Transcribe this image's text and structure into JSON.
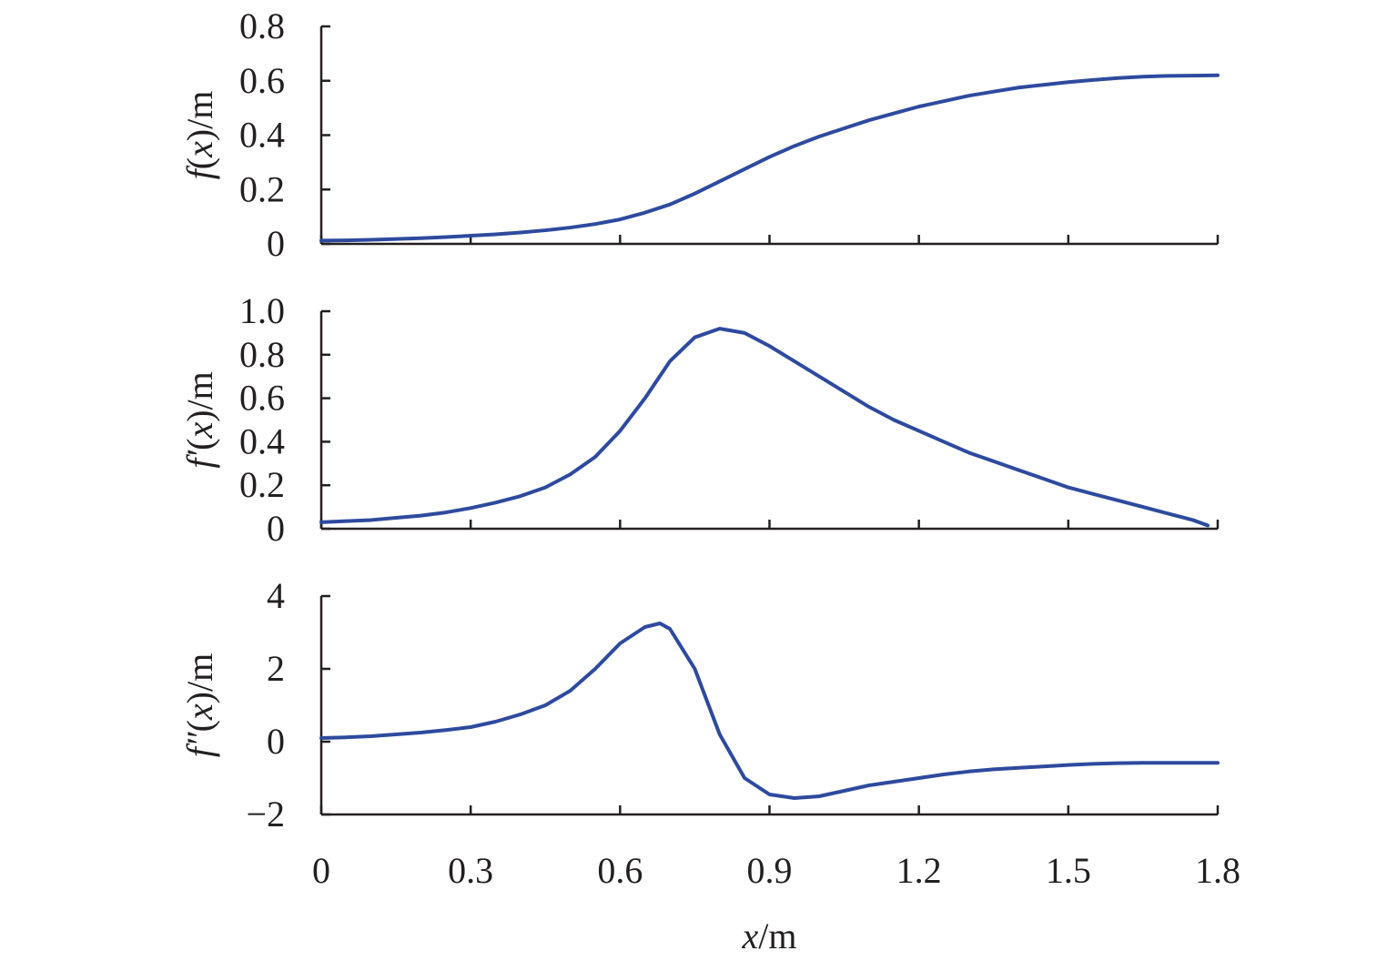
{
  "colors": {
    "line": "#2e4a9e",
    "axis": "#231f20"
  },
  "x_axis": {
    "label_var": "x",
    "label_unit": "/m",
    "ticks": [
      "0",
      "0.3",
      "0.6",
      "0.9",
      "1.2",
      "1.5",
      "1.8"
    ]
  },
  "chart_data": [
    {
      "type": "line",
      "ylabel_func": "f",
      "ylabel_prime": "",
      "ylabel_open": "(",
      "ylabel_var": "x",
      "ylabel_close": ")/m",
      "xlim": [
        0,
        1.8
      ],
      "ylim": [
        0,
        0.8
      ],
      "yticks": [
        0,
        0.2,
        0.4,
        0.6,
        0.8
      ],
      "ytick_labels": [
        "0",
        "0.2",
        "0.4",
        "0.6",
        "0.8"
      ],
      "x": [
        0,
        0.05,
        0.1,
        0.15,
        0.2,
        0.25,
        0.3,
        0.35,
        0.4,
        0.45,
        0.5,
        0.55,
        0.6,
        0.65,
        0.7,
        0.75,
        0.8,
        0.85,
        0.9,
        0.95,
        1.0,
        1.05,
        1.1,
        1.15,
        1.2,
        1.25,
        1.3,
        1.35,
        1.4,
        1.45,
        1.5,
        1.55,
        1.6,
        1.65,
        1.7,
        1.75,
        1.8
      ],
      "y": [
        0.012,
        0.013,
        0.015,
        0.018,
        0.021,
        0.025,
        0.03,
        0.035,
        0.042,
        0.05,
        0.06,
        0.073,
        0.09,
        0.115,
        0.145,
        0.185,
        0.23,
        0.275,
        0.32,
        0.36,
        0.395,
        0.425,
        0.455,
        0.48,
        0.505,
        0.525,
        0.545,
        0.56,
        0.575,
        0.585,
        0.595,
        0.603,
        0.61,
        0.615,
        0.618,
        0.619,
        0.62
      ]
    },
    {
      "type": "line",
      "ylabel_func": "f",
      "ylabel_prime": "′",
      "ylabel_open": "(",
      "ylabel_var": "x",
      "ylabel_close": ")/m",
      "xlim": [
        0,
        1.8
      ],
      "ylim": [
        0,
        1.0
      ],
      "yticks": [
        0,
        0.2,
        0.4,
        0.6,
        0.8,
        1.0
      ],
      "ytick_labels": [
        "0",
        "0.2",
        "0.4",
        "0.6",
        "0.8",
        "1.0"
      ],
      "x": [
        0,
        0.05,
        0.1,
        0.15,
        0.2,
        0.25,
        0.3,
        0.35,
        0.4,
        0.45,
        0.5,
        0.55,
        0.6,
        0.65,
        0.7,
        0.75,
        0.8,
        0.85,
        0.9,
        0.95,
        1.0,
        1.05,
        1.1,
        1.15,
        1.2,
        1.25,
        1.3,
        1.35,
        1.4,
        1.45,
        1.5,
        1.55,
        1.6,
        1.65,
        1.7,
        1.75,
        1.78
      ],
      "y": [
        0.03,
        0.035,
        0.04,
        0.05,
        0.06,
        0.075,
        0.095,
        0.12,
        0.15,
        0.19,
        0.25,
        0.33,
        0.45,
        0.6,
        0.77,
        0.88,
        0.92,
        0.9,
        0.84,
        0.77,
        0.7,
        0.63,
        0.56,
        0.5,
        0.45,
        0.4,
        0.35,
        0.31,
        0.27,
        0.23,
        0.19,
        0.16,
        0.13,
        0.1,
        0.07,
        0.04,
        0.015
      ]
    },
    {
      "type": "line",
      "ylabel_func": "f",
      "ylabel_prime": "″",
      "ylabel_open": "(",
      "ylabel_var": "x",
      "ylabel_close": ")/m",
      "xlim": [
        0,
        1.8
      ],
      "ylim": [
        -2,
        4
      ],
      "yticks": [
        -2,
        0,
        2,
        4
      ],
      "ytick_labels": [
        "−2",
        "0",
        "2",
        "4"
      ],
      "x": [
        0,
        0.05,
        0.1,
        0.15,
        0.2,
        0.25,
        0.3,
        0.35,
        0.4,
        0.45,
        0.5,
        0.55,
        0.6,
        0.65,
        0.68,
        0.7,
        0.75,
        0.8,
        0.85,
        0.9,
        0.95,
        1.0,
        1.05,
        1.1,
        1.15,
        1.2,
        1.25,
        1.3,
        1.35,
        1.4,
        1.45,
        1.5,
        1.55,
        1.6,
        1.65,
        1.7,
        1.75,
        1.8
      ],
      "y": [
        0.1,
        0.12,
        0.15,
        0.2,
        0.25,
        0.32,
        0.4,
        0.55,
        0.75,
        1.0,
        1.4,
        2.0,
        2.7,
        3.15,
        3.25,
        3.1,
        2.0,
        0.2,
        -1.0,
        -1.45,
        -1.55,
        -1.5,
        -1.35,
        -1.2,
        -1.1,
        -1.0,
        -0.9,
        -0.82,
        -0.76,
        -0.72,
        -0.68,
        -0.64,
        -0.61,
        -0.59,
        -0.58,
        -0.58,
        -0.58,
        -0.58
      ]
    }
  ]
}
